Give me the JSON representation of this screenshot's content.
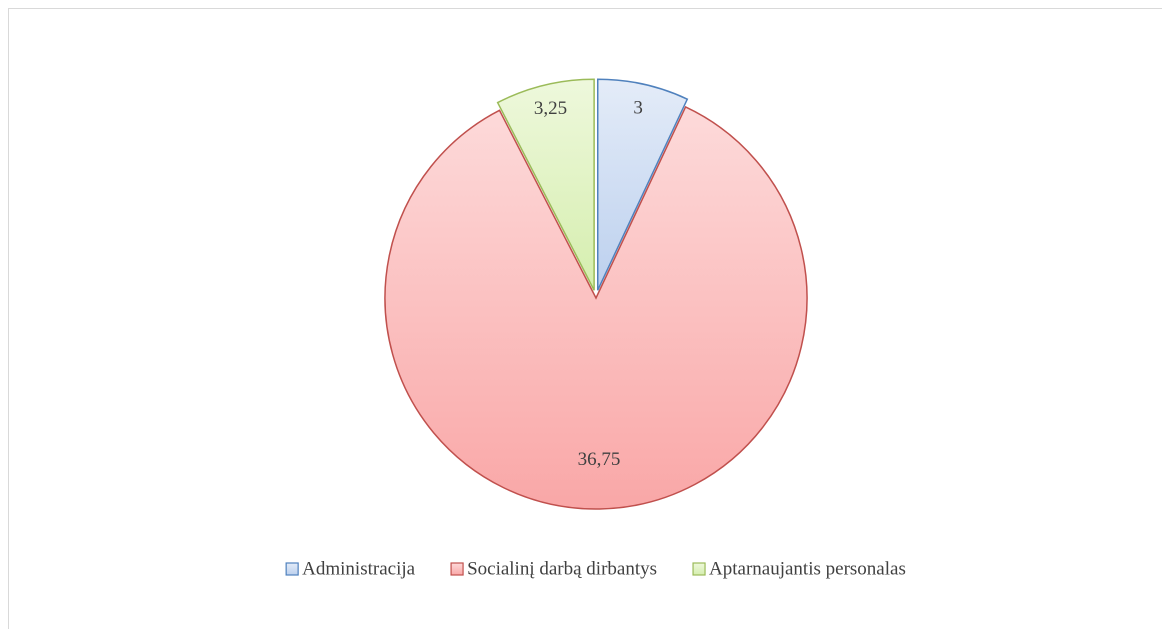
{
  "chart_data": {
    "type": "pie",
    "categories": [
      "Administracija",
      "Socialinį darbą dirbantys",
      "Aptarnaujantis personalas"
    ],
    "values": [
      3,
      36.75,
      3.25
    ],
    "value_labels": [
      "3",
      "36,75",
      "3,25"
    ],
    "colors": [
      "#4f81bd",
      "#c0504d",
      "#9bbb59"
    ],
    "legend": "bottom"
  }
}
